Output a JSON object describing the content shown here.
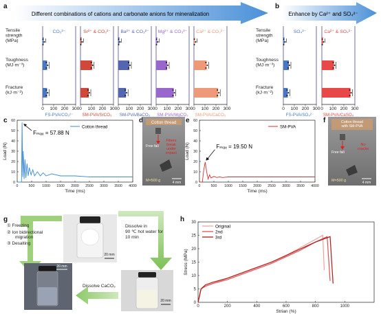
{
  "panels": {
    "a": {
      "letter": "a",
      "banner": "Different combinations of cations and carbonate anions for mineralization",
      "rows": [
        "Tensile strength (MPa)",
        "Toughness (MJ·m⁻³)",
        "Fracture (kJ·m⁻²)"
      ],
      "row_lines": [
        [
          "Tensile",
          "strength",
          "(MPa)"
        ],
        [
          "Toughness",
          "(MJ·m⁻³)"
        ],
        [
          "Fracture",
          "(kJ·m⁻²)"
        ]
      ],
      "ion_labels": [
        "CO₃²⁻",
        "Sr²⁺ & CO₃²⁻",
        "Ba²⁺ & CO₃²⁻",
        "Mg²⁺ & CO₃²⁻",
        "Ca²⁺ & CO₃²⁻"
      ],
      "sample_labels": [
        "FS-PVA/CO₃²⁻",
        "SM-PVA/SrCO₃",
        "SM-PVA/BaCO₃",
        "SM-PVA/MgCO₃",
        "SM-PVA/CaCO₃"
      ],
      "colors": [
        "#4a78c0",
        "#d0483a",
        "#5566b0",
        "#9966cc",
        "#ee9977"
      ],
      "ticks": [
        "0",
        "100",
        "200",
        "300"
      ]
    },
    "b": {
      "letter": "b",
      "banner": "Enhance by Ca²⁺ and SO₄²⁻",
      "rows": [
        "Tensile strength (MPa)",
        "Toughness (MJ·m⁻³)",
        "Fracture (kJ·m⁻²)"
      ],
      "row_lines": [
        [
          "Tensile",
          "strength",
          "(MPa)"
        ],
        [
          "Toughness",
          "(MJ·m⁻³)"
        ],
        [
          "Fracture",
          "(kJ·m⁻²)"
        ]
      ],
      "ion_labels": [
        "SO₄²⁻",
        "Ca²⁺ & SO₄²⁻"
      ],
      "sample_labels": [
        "FS-PVA/SO₄²⁻",
        "SM-PVA/CaSO₄"
      ],
      "colors": [
        "#4a78c0",
        "#e84848"
      ],
      "ticks": [
        "0",
        "100",
        "200",
        "300"
      ]
    },
    "c": {
      "letter": "c",
      "annotation": "Fₘₐₓ = 57.88 N",
      "legend": "Cotton thread",
      "xlabel": "Time (ms)",
      "ylabel": "Load (N)",
      "line_color": "#3a8ad8"
    },
    "d": {
      "letter": "d",
      "header": "Cotton thread",
      "free_fall": "Free fall",
      "note": "Fibers break under impact",
      "mass": "M=500 g",
      "scale": "4 mm"
    },
    "e": {
      "letter": "e",
      "annotation": "Fₘₐₓ = 19.50 N",
      "legend": "SM-PVA",
      "xlabel": "Time (ms)",
      "ylabel": "Load (N)",
      "line_color": "#d03030"
    },
    "f": {
      "letter": "f",
      "header": "Cotton thread with SM-PVA",
      "free_fall": "Free fall",
      "note": "No cracks",
      "mass": "M=500 g",
      "scale": "4 mm"
    },
    "g": {
      "letter": "g",
      "steps": [
        "① Freezing",
        "② Ion bidirectional migration",
        "③ Desalting"
      ],
      "dissolve_hot": "Dissolve in 90 ℃ hot water for 10 min",
      "dissolve_caco3": "Dissolve CaCO₃",
      "scale_bar": "20 mm"
    },
    "h": {
      "letter": "h",
      "legend": [
        "Original",
        "2nd",
        "3rd"
      ],
      "xlabel": "Strian (%)",
      "ylabel": "Stress (MPa)",
      "colors": [
        "#f0a0a0",
        "#e05050",
        "#b01818"
      ]
    }
  },
  "chart_data": [
    {
      "panel": "a",
      "type": "bar",
      "orientation": "horizontal",
      "categories": [
        "Tensile strength (MPa)",
        "Toughness (MJ·m⁻³)",
        "Fracture (kJ·m⁻²)"
      ],
      "series": [
        {
          "name": "FS-PVA/CO₃²⁻",
          "values": [
            5,
            40,
            40
          ]
        },
        {
          "name": "SM-PVA/SrCO₃",
          "values": [
            5,
            105,
            75
          ]
        },
        {
          "name": "SM-PVA/BaCO₃",
          "values": [
            5,
            100,
            70
          ]
        },
        {
          "name": "SM-PVA/MgCO₃",
          "values": [
            5,
            100,
            160
          ]
        },
        {
          "name": "SM-PVA/CaCO₃",
          "values": [
            5,
            115,
            220
          ]
        }
      ],
      "xlim": [
        0,
        300
      ],
      "x_ticks": [
        0,
        100,
        200,
        300
      ]
    },
    {
      "panel": "b",
      "type": "bar",
      "orientation": "horizontal",
      "categories": [
        "Tensile strength (MPa)",
        "Toughness (MJ·m⁻³)",
        "Fracture (kJ·m⁻²)"
      ],
      "series": [
        {
          "name": "FS-PVA/SO₄²⁻",
          "values": [
            5,
            50,
            40
          ]
        },
        {
          "name": "SM-PVA/CaSO₄",
          "values": [
            5,
            110,
            260
          ]
        }
      ],
      "xlim": [
        0,
        300
      ],
      "x_ticks": [
        0,
        100,
        200,
        300
      ]
    },
    {
      "panel": "c",
      "type": "line",
      "series": [
        {
          "name": "Cotton thread",
          "x": [
            0,
            150,
            170,
            190,
            210,
            240,
            270,
            300,
            340,
            380,
            420,
            480,
            540,
            600,
            700,
            800,
            900,
            1000,
            1200,
            1500,
            2000,
            2500,
            3000,
            3500,
            4000
          ],
          "y": [
            0,
            0,
            57.88,
            5,
            30,
            3,
            22,
            4,
            18,
            6,
            14,
            7,
            12,
            6,
            10,
            6,
            9,
            6,
            8,
            6,
            6,
            5,
            5,
            5,
            5
          ]
        }
      ],
      "xlim": [
        0,
        4000
      ],
      "ylim": [
        0,
        60
      ],
      "x_ticks": [
        0,
        500,
        1000,
        1500,
        2000,
        2500,
        3000,
        3500,
        4000
      ],
      "y_ticks": [
        0,
        10,
        20,
        30,
        40,
        50,
        60
      ],
      "annotation": "Fₘₐₓ = 57.88 N"
    },
    {
      "panel": "e",
      "type": "line",
      "series": [
        {
          "name": "SM-PVA",
          "x": [
            0,
            100,
            150,
            200,
            250,
            300,
            350,
            400,
            500,
            600,
            700,
            800,
            1000,
            1500,
            2000,
            2500,
            3000,
            3500,
            4000
          ],
          "y": [
            0,
            0,
            12,
            19.5,
            10,
            3,
            7,
            4,
            5.5,
            4.5,
            5,
            4.5,
            5,
            5,
            5,
            5,
            5,
            5,
            5
          ]
        }
      ],
      "xlim": [
        0,
        4000
      ],
      "ylim": [
        0,
        60
      ],
      "x_ticks": [
        0,
        500,
        1000,
        1500,
        2000,
        2500,
        3000,
        3500,
        4000
      ],
      "y_ticks": [
        0,
        10,
        20,
        30,
        40,
        50,
        60
      ],
      "annotation": "Fₘₐₓ = 19.50 N"
    },
    {
      "panel": "h",
      "type": "line",
      "series": [
        {
          "name": "Original",
          "x": [
            0,
            20,
            50,
            100,
            200,
            300,
            400,
            500,
            600,
            700,
            800,
            850,
            860
          ],
          "y": [
            0,
            5,
            6,
            7,
            9,
            11,
            13,
            15,
            17.5,
            20.5,
            23.5,
            25,
            12
          ]
        },
        {
          "name": "2nd",
          "x": [
            0,
            20,
            50,
            100,
            200,
            300,
            400,
            500,
            600,
            700,
            800,
            880,
            900
          ],
          "y": [
            0,
            5,
            6,
            7,
            8.5,
            10.5,
            12.5,
            14.5,
            17,
            19.5,
            22.5,
            24.5,
            8
          ]
        },
        {
          "name": "3rd",
          "x": [
            0,
            20,
            50,
            100,
            200,
            300,
            400,
            500,
            600,
            700,
            800,
            900,
            920
          ],
          "y": [
            0,
            5,
            6.5,
            7.5,
            9,
            11,
            13,
            15,
            17.5,
            20,
            22.5,
            24.5,
            7
          ]
        }
      ],
      "xlim": [
        0,
        1200
      ],
      "ylim": [
        0,
        30
      ],
      "x_ticks": [
        0,
        200,
        400,
        600,
        800,
        1000
      ],
      "y_ticks": [
        0,
        5,
        10,
        15,
        20,
        25,
        30
      ]
    }
  ]
}
